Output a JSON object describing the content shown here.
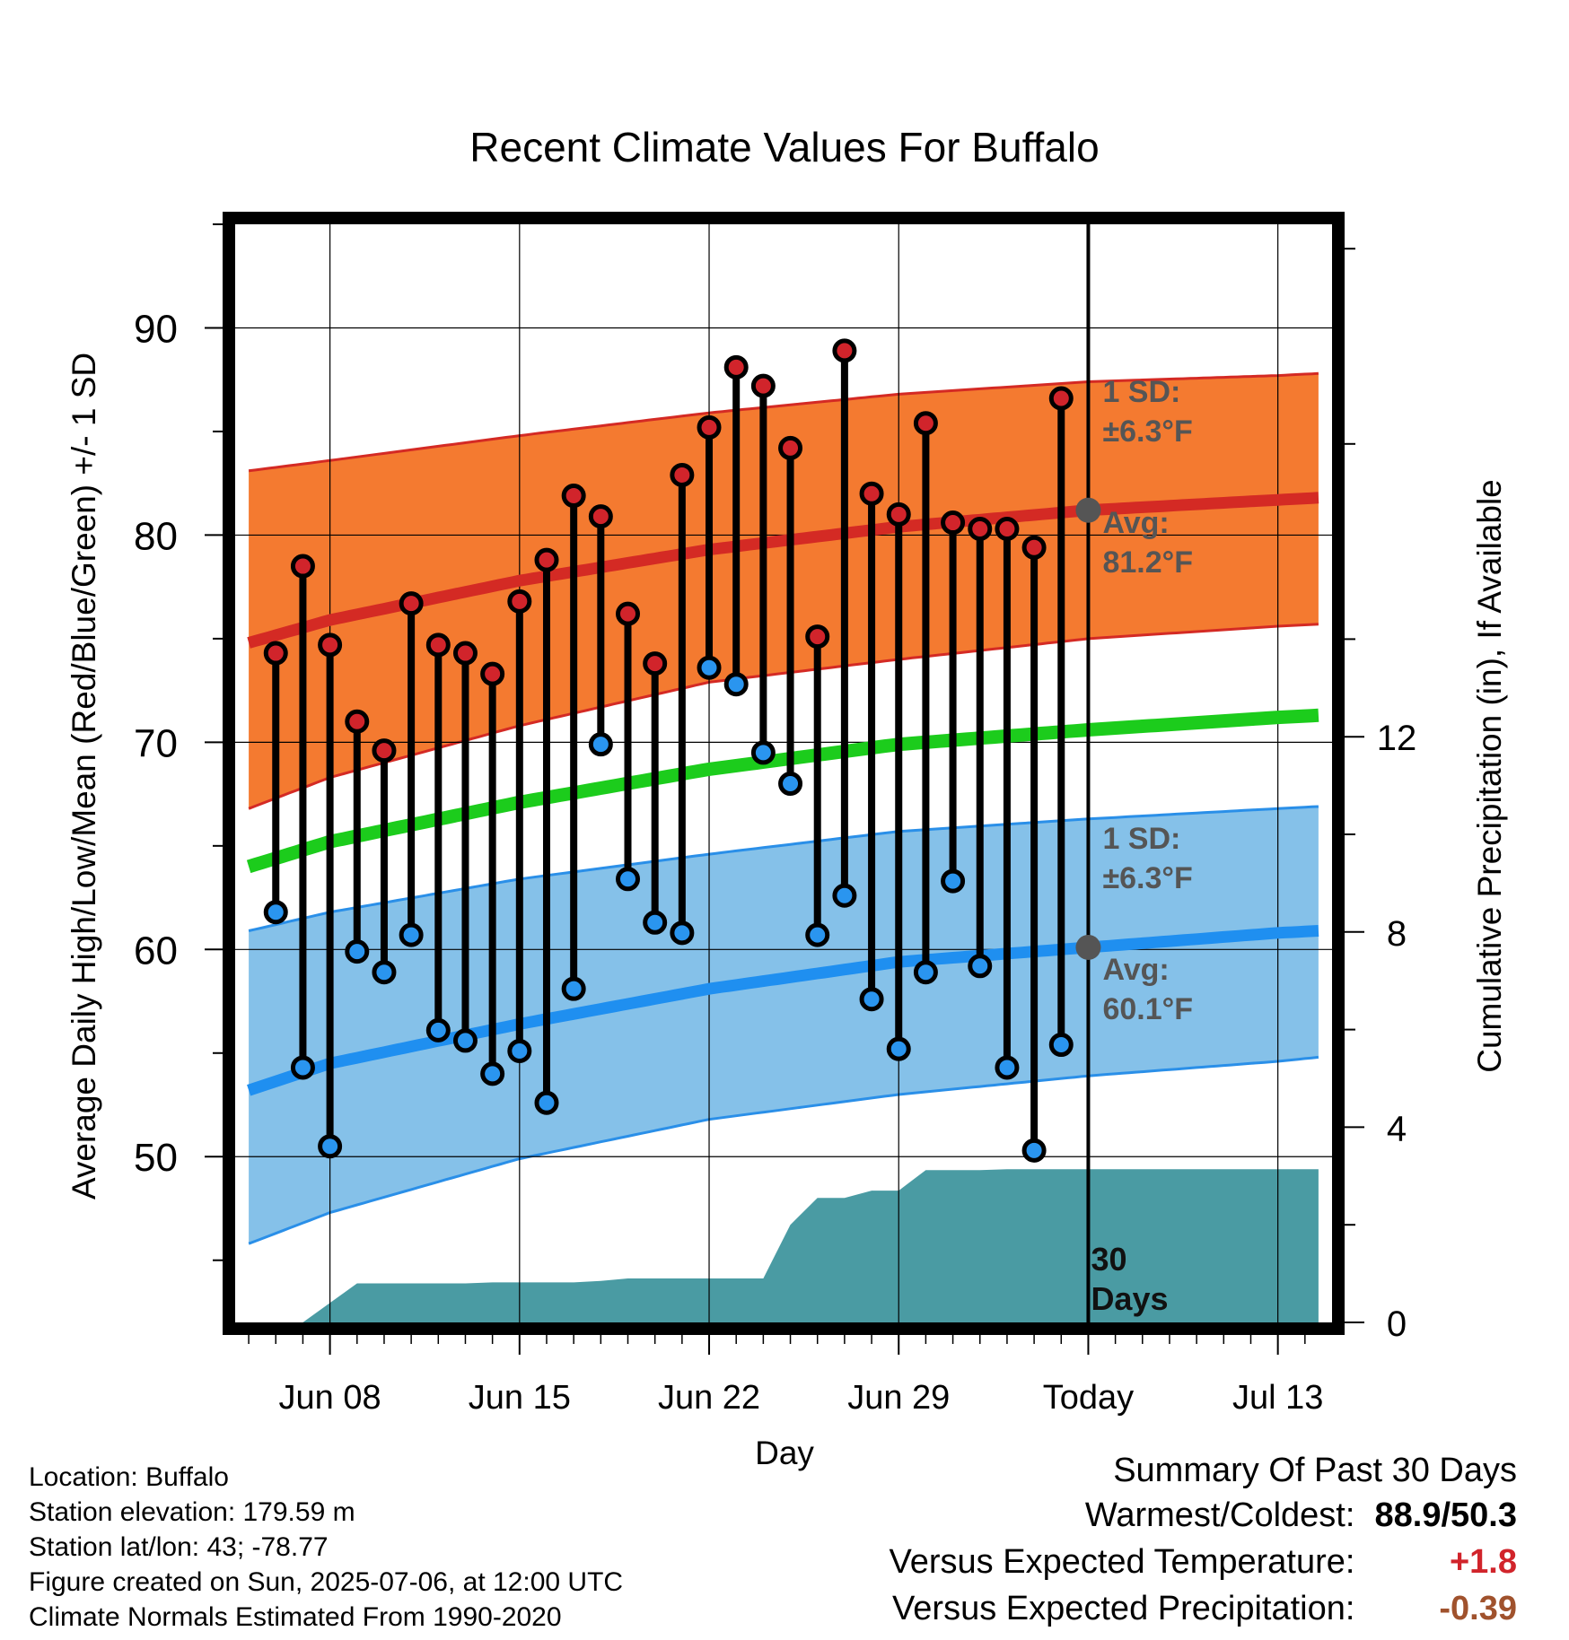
{
  "chart_data": {
    "type": "line",
    "title": "Recent Climate Values For Buffalo",
    "xlabel": "Day",
    "ylabel": "Average Daily High/Low/Mean (Red/Blue/Green) +/- 1 SD",
    "y2label": "Cumulative Precipitation (in), If Available",
    "ylim": [
      42,
      95
    ],
    "y2lim": [
      0,
      22.5
    ],
    "xlim_day_index": [
      -3.5,
      37
    ],
    "x_tick_labels": [
      {
        "day": 0,
        "label": "Jun 08"
      },
      {
        "day": 7,
        "label": "Jun 15"
      },
      {
        "day": 14,
        "label": "Jun 22"
      },
      {
        "day": 21,
        "label": "Jun 29"
      },
      {
        "day": 28,
        "label": "Today"
      },
      {
        "day": 35,
        "label": "Jul 13"
      }
    ],
    "y_ticks": [
      50,
      60,
      70,
      80,
      90
    ],
    "y2_ticks": [
      0,
      4,
      8,
      12
    ],
    "grid": true,
    "colors": {
      "high_band": "#f47a30",
      "high_band_edge": "#d42a24",
      "high_mean": "#d42a24",
      "low_band": "#85c1e9",
      "low_band_edge": "#2a8fe8",
      "low_mean": "#1f8ff0",
      "mean": "#1ccc1c",
      "precip": "#4a9ba3",
      "high_dot": "#d1242b",
      "low_dot": "#2a95ef",
      "today_dot": "#555555"
    },
    "normals": {
      "day": [
        -3,
        0,
        7,
        14,
        21,
        28,
        35,
        36.5
      ],
      "high_mean": [
        74.8,
        75.9,
        77.8,
        79.3,
        80.4,
        81.2,
        81.7,
        81.8
      ],
      "high_upper": [
        83.1,
        83.6,
        84.8,
        85.9,
        86.8,
        87.4,
        87.7,
        87.8
      ],
      "high_lower": [
        66.8,
        68.3,
        70.8,
        72.9,
        74.0,
        75.0,
        75.6,
        75.7
      ],
      "low_mean": [
        53.2,
        54.5,
        56.4,
        58.1,
        59.4,
        60.1,
        60.8,
        60.9
      ],
      "low_upper": [
        60.9,
        61.8,
        63.4,
        64.6,
        65.7,
        66.3,
        66.8,
        66.9
      ],
      "low_lower": [
        45.8,
        47.3,
        49.9,
        51.8,
        53.0,
        53.9,
        54.6,
        54.8
      ],
      "mean": [
        64.0,
        65.2,
        67.1,
        68.7,
        69.9,
        70.6,
        71.2,
        71.3
      ]
    },
    "series": [
      {
        "name": "High",
        "values": [
          74.3,
          78.5,
          74.7,
          71.0,
          69.6,
          76.7,
          74.7,
          74.3,
          73.3,
          76.8,
          78.8,
          81.9,
          80.9,
          76.2,
          73.8,
          82.9,
          85.2,
          88.1,
          87.2,
          84.2,
          75.1,
          88.9,
          82.0,
          81.0,
          85.4,
          80.6,
          80.3,
          80.3,
          79.4,
          86.6
        ]
      },
      {
        "name": "Low",
        "values": [
          61.8,
          54.3,
          50.5,
          59.9,
          58.9,
          60.7,
          56.1,
          55.6,
          54.0,
          55.1,
          52.6,
          58.1,
          69.9,
          63.4,
          61.3,
          60.8,
          73.6,
          72.8,
          69.5,
          68.0,
          60.7,
          62.6,
          57.6,
          55.2,
          58.9,
          63.3,
          59.2,
          54.3,
          50.3,
          55.4
        ]
      }
    ],
    "obs_days": [
      -2,
      -1,
      0,
      1,
      2,
      3,
      4,
      5,
      6,
      7,
      8,
      9,
      10,
      11,
      12,
      13,
      14,
      15,
      16,
      17,
      18,
      19,
      20,
      21,
      22,
      23,
      24,
      25,
      26,
      27
    ],
    "precip_cumulative": {
      "day": [
        -2,
        -1,
        0,
        1,
        2,
        3,
        4,
        5,
        6,
        7,
        8,
        9,
        10,
        11,
        12,
        13,
        14,
        15,
        16,
        17,
        18,
        19,
        20,
        21,
        22,
        23,
        24,
        25,
        26,
        27,
        28,
        36.5
      ],
      "values": [
        0.0,
        0.0,
        0.4,
        0.8,
        0.8,
        0.8,
        0.8,
        0.8,
        0.82,
        0.82,
        0.82,
        0.82,
        0.85,
        0.9,
        0.9,
        0.9,
        0.9,
        0.9,
        0.9,
        2.0,
        2.55,
        2.55,
        2.7,
        2.7,
        3.12,
        3.12,
        3.12,
        3.14,
        3.14,
        3.14,
        3.14,
        3.14
      ]
    },
    "annotations": {
      "high_sd_label": "1 SD:",
      "high_sd_value": "±6.3°F",
      "high_avg_label": "Avg:",
      "high_avg_value": "81.2°F",
      "high_avg_at_today": 81.2,
      "low_sd_label": "1 SD:",
      "low_sd_value": "±6.3°F",
      "low_avg_label": "Avg:",
      "low_avg_value": "60.1°F",
      "low_avg_at_today": 60.1,
      "days_number": "30",
      "days_word": "Days"
    }
  },
  "info": {
    "location": "Location: Buffalo",
    "elevation": "Station elevation: 179.59 m",
    "latlon": "Station lat/lon: 43; -78.77",
    "created": "Figure created on Sun, 2025-07-06, at 12:00 UTC",
    "normals": "Climate Normals Estimated From 1990-2020"
  },
  "summary": {
    "title": "Summary Of Past 30 Days",
    "warmest_coldest_label": "Warmest/Coldest:",
    "warmest_coldest_value": "88.9/50.3",
    "temp_label": "Versus Expected Temperature:",
    "temp_value": "+1.8",
    "temp_color": "#d1242b",
    "precip_label": "Versus Expected Precipitation:",
    "precip_value": "-0.39",
    "precip_color": "#a0522d"
  }
}
